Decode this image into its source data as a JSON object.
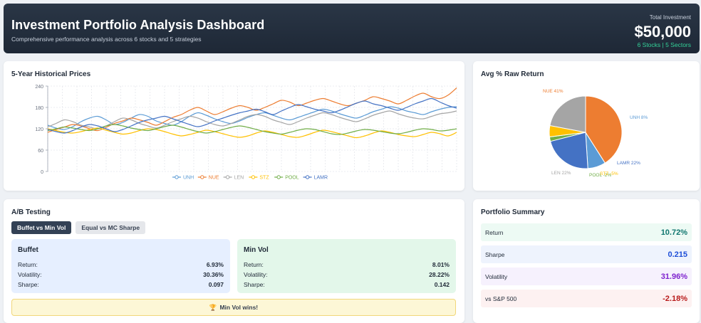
{
  "header": {
    "title": "Investment Portfolio Analysis Dashboard",
    "subtitle": "Comprehensive performance analysis across 6 stocks and 5 strategies",
    "total_label": "Total Investment",
    "total_value": "$50,000",
    "total_sub": "6 Stocks | 5 Sectors"
  },
  "history": {
    "title": "5-Year Historical Prices"
  },
  "pie_card": {
    "title": "Avg % Raw Return"
  },
  "chart_data": [
    {
      "type": "line",
      "title": "5-Year Historical Prices",
      "ylim": [
        0,
        240
      ],
      "yticks": [
        0,
        60,
        120,
        180,
        240
      ],
      "x": [
        0,
        1,
        2,
        3,
        4,
        5,
        6,
        7,
        8,
        9,
        10,
        11,
        12,
        13,
        14,
        15,
        16,
        17,
        18,
        19,
        20,
        21,
        22,
        23,
        24,
        25,
        26,
        27,
        28,
        29,
        30,
        31,
        32,
        33,
        34,
        35,
        36,
        37,
        38,
        39,
        40,
        41,
        42,
        43,
        44,
        45,
        46,
        47,
        48,
        49
      ],
      "legend_position": "bottom",
      "grid": true,
      "series": [
        {
          "name": "UNH",
          "color": "#5b9bd5",
          "values": [
            130,
            122,
            118,
            126,
            140,
            150,
            155,
            145,
            132,
            138,
            150,
            160,
            155,
            142,
            135,
            130,
            140,
            155,
            165,
            158,
            148,
            140,
            135,
            142,
            152,
            160,
            165,
            158,
            150,
            145,
            152,
            160,
            168,
            175,
            170,
            162,
            155,
            150,
            158,
            168,
            175,
            182,
            178,
            170,
            165,
            160,
            168,
            175,
            180,
            182
          ]
        },
        {
          "name": "NUE",
          "color": "#ed7d31",
          "values": [
            110,
            118,
            125,
            132,
            128,
            120,
            115,
            124,
            135,
            142,
            150,
            145,
            138,
            130,
            140,
            152,
            160,
            172,
            180,
            170,
            160,
            168,
            178,
            185,
            180,
            172,
            180,
            190,
            200,
            195,
            185,
            192,
            200,
            205,
            198,
            190,
            185,
            192,
            200,
            210,
            205,
            198,
            190,
            200,
            212,
            220,
            210,
            205,
            215,
            235
          ]
        },
        {
          "name": "LEN",
          "color": "#a5a5a5",
          "values": [
            125,
            135,
            145,
            140,
            130,
            125,
            120,
            128,
            140,
            150,
            145,
            135,
            128,
            122,
            130,
            140,
            148,
            155,
            150,
            140,
            132,
            128,
            135,
            145,
            155,
            160,
            155,
            145,
            138,
            132,
            140,
            150,
            158,
            165,
            160,
            152,
            145,
            140,
            148,
            158,
            165,
            170,
            162,
            155,
            150,
            148,
            155,
            162,
            165,
            170
          ]
        },
        {
          "name": "STZ",
          "color": "#ffc000",
          "values": [
            120,
            115,
            110,
            108,
            112,
            118,
            122,
            116,
            110,
            105,
            108,
            115,
            120,
            118,
            112,
            105,
            100,
            104,
            110,
            116,
            112,
            106,
            100,
            96,
            100,
            108,
            114,
            110,
            104,
            98,
            96,
            102,
            110,
            116,
            112,
            106,
            100,
            95,
            100,
            108,
            114,
            110,
            104,
            100,
            98,
            104,
            110,
            106,
            100,
            110
          ]
        },
        {
          "name": "POOL",
          "color": "#70ad47",
          "values": [
            115,
            120,
            125,
            122,
            118,
            115,
            120,
            128,
            132,
            128,
            122,
            118,
            115,
            120,
            126,
            130,
            125,
            118,
            112,
            108,
            112,
            118,
            124,
            128,
            124,
            118,
            112,
            108,
            105,
            110,
            116,
            120,
            118,
            112,
            106,
            104,
            108,
            114,
            118,
            116,
            112,
            108,
            106,
            110,
            116,
            120,
            118,
            114,
            116,
            120
          ]
        },
        {
          "name": "LAMR",
          "color": "#4472c4",
          "values": [
            118,
            112,
            108,
            115,
            125,
            132,
            128,
            120,
            112,
            118,
            128,
            138,
            145,
            150,
            155,
            148,
            140,
            132,
            126,
            132,
            142,
            150,
            158,
            165,
            170,
            175,
            168,
            160,
            170,
            180,
            188,
            182,
            175,
            170,
            165,
            172,
            182,
            192,
            198,
            190,
            185,
            178,
            172,
            180,
            190,
            198,
            205,
            195,
            185,
            178
          ]
        }
      ]
    },
    {
      "type": "pie",
      "title": "Avg % Raw Return",
      "slices": [
        {
          "label": "UNH 8%",
          "value": 8,
          "color": "#5b9bd5"
        },
        {
          "label": "LAMR 22%",
          "value": 22,
          "color": "#4472c4"
        },
        {
          "label": "POOL -2%",
          "value": 2,
          "color": "#70ad47"
        },
        {
          "label": "STZ -5%",
          "value": 5,
          "color": "#ffc000"
        },
        {
          "label": "LEN 22%",
          "value": 22,
          "color": "#a5a5a5"
        },
        {
          "label": "NUE 41%",
          "value": 41,
          "color": "#ed7d31"
        }
      ]
    }
  ],
  "ab": {
    "title": "A/B Testing",
    "tabs": [
      "Buffet vs Min Vol",
      "Equal vs MC Sharpe"
    ],
    "a": {
      "name": "Buffet",
      "rows": [
        {
          "label": "Return:",
          "value": "6.93%"
        },
        {
          "label": "Volatility:",
          "value": "30.36%"
        },
        {
          "label": "Sharpe:",
          "value": "0.097"
        }
      ]
    },
    "b": {
      "name": "Min Vol",
      "rows": [
        {
          "label": "Return:",
          "value": "8.01%"
        },
        {
          "label": "Volatility:",
          "value": "28.22%"
        },
        {
          "label": "Sharpe:",
          "value": "0.142"
        }
      ]
    },
    "winner_icon": "🏆",
    "winner_text": "Min Vol wins!"
  },
  "summary": {
    "title": "Portfolio Summary",
    "rows": [
      {
        "label": "Return",
        "value": "10.72%"
      },
      {
        "label": "Sharpe",
        "value": "0.215"
      },
      {
        "label": "Volatility",
        "value": "31.96%"
      },
      {
        "label": "vs S&P 500",
        "value": "-2.18%"
      }
    ]
  }
}
